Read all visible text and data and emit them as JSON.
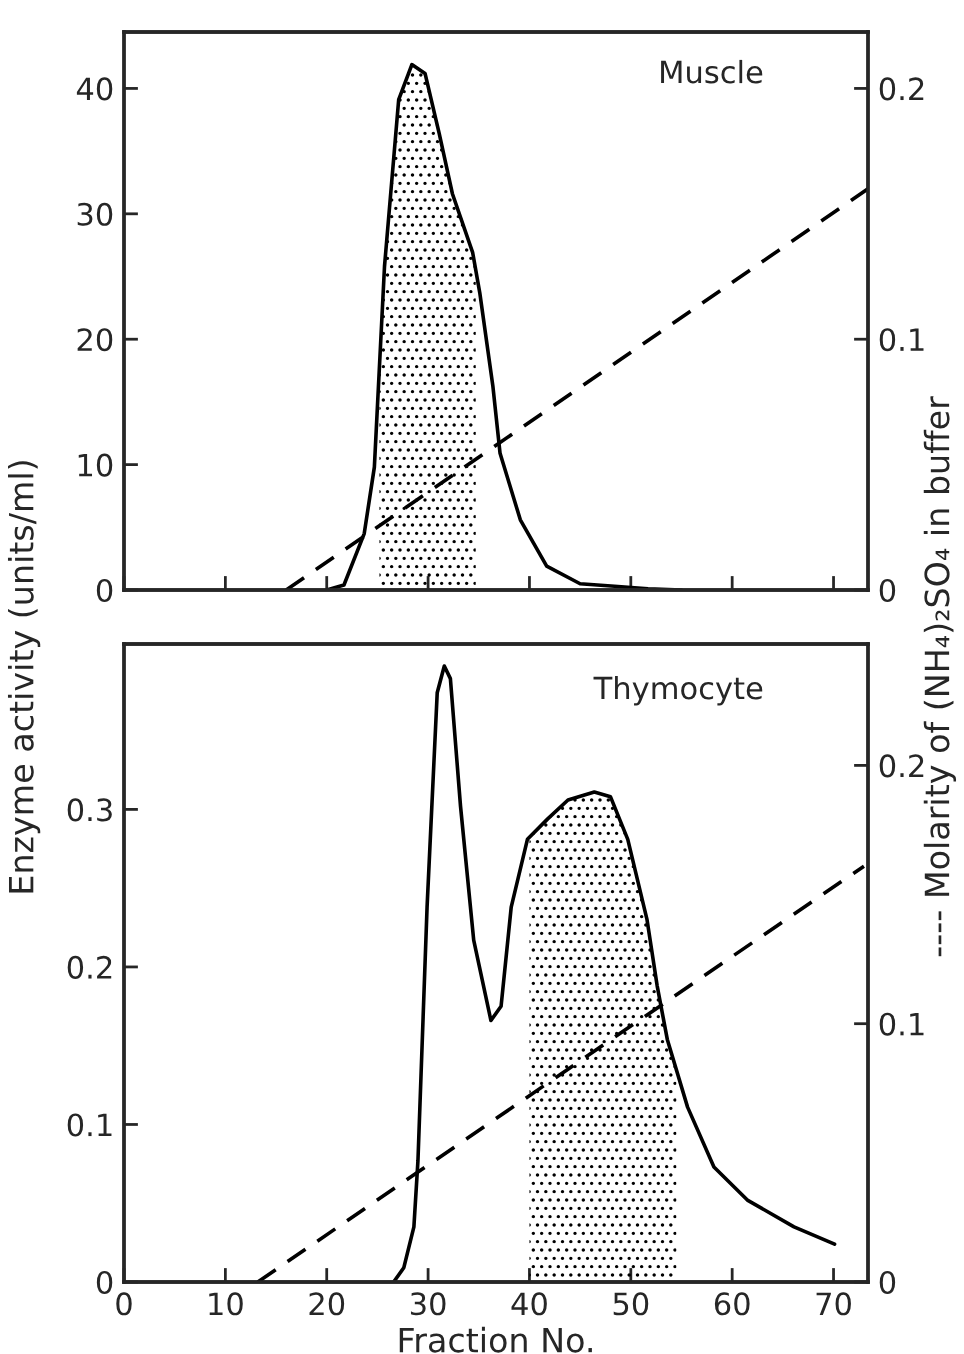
{
  "chart_data": [
    {
      "type": "line",
      "title": "Muscle",
      "ylabel": "Enzyme activity (units/ml)",
      "y2label": "---- Molarity of (NH₄)₂SO₄ in buffer",
      "xlim": [
        0,
        73.4
      ],
      "xticks": [
        0,
        10,
        20,
        30,
        40,
        50,
        60,
        70
      ],
      "ylim": [
        0,
        44.5
      ],
      "yticks": [
        0,
        10,
        20,
        30,
        40
      ],
      "y2lim": [
        0,
        0.2225
      ],
      "y2ticks": [
        0,
        0.1,
        0.2
      ],
      "tick_labels": "y",
      "series": [
        {
          "color": "#000000",
          "line_style": "solid",
          "x": [
            20,
            21.7,
            23.7,
            24.7,
            25.7,
            27.1,
            28.4,
            29.7,
            31.1,
            32.4,
            34.4,
            35.1,
            36.4,
            37.1,
            39.1,
            41.7,
            45,
            48.4,
            51.7,
            55
          ],
          "values": [
            0,
            0.4,
            4.5,
            9.8,
            25.8,
            39.1,
            41.9,
            41.2,
            36.4,
            31.6,
            26.9,
            23.7,
            16.2,
            10.9,
            5.6,
            1.9,
            0.5,
            0.3,
            0.1,
            0
          ]
        },
        {
          "color": "#000000",
          "line_style": "dashed",
          "axis": "y2",
          "x": [
            16,
            73.4
          ],
          "values": [
            0,
            0.16
          ]
        },
        {
          "type": "area",
          "color": "#000000",
          "x": [
            25.2,
            25.7,
            27.1,
            28.4,
            29.7,
            31.1,
            32.4,
            34.4,
            34.7
          ],
          "values": [
            17.8,
            25.8,
            39.1,
            41.9,
            41.2,
            36.4,
            31.6,
            26.9,
            25.5
          ]
        }
      ]
    },
    {
      "type": "line",
      "title": "Thymocyte",
      "xlabel": "Fraction No.",
      "xlim": [
        0,
        73.4
      ],
      "xticks": [
        0,
        10,
        20,
        30,
        40,
        50,
        60,
        70
      ],
      "ylim": [
        0,
        0.405
      ],
      "yticks": [
        0,
        0.1,
        0.2,
        0.3
      ],
      "y2lim": [
        0,
        0.247
      ],
      "y2ticks": [
        0,
        0.1,
        0.2
      ],
      "series": [
        {
          "color": "#000000",
          "line_style": "solid",
          "x": [
            26.6,
            27.6,
            28.6,
            29,
            29.9,
            30.9,
            31.6,
            32.2,
            33.2,
            34.5,
            36.2,
            37.2,
            38.2,
            39.8,
            41.8,
            43.8,
            46.4,
            48,
            49.7,
            51.6,
            52.6,
            53.6,
            55.6,
            58.2,
            61.5,
            66.1,
            70.1
          ],
          "values": [
            0,
            0.009,
            0.035,
            0.077,
            0.238,
            0.374,
            0.391,
            0.383,
            0.302,
            0.217,
            0.166,
            0.175,
            0.238,
            0.281,
            0.294,
            0.306,
            0.311,
            0.308,
            0.281,
            0.23,
            0.188,
            0.154,
            0.111,
            0.073,
            0.052,
            0.035,
            0.024
          ]
        },
        {
          "color": "#000000",
          "line_style": "dashed",
          "axis": "y2",
          "x": [
            13.2,
            73
          ],
          "values": [
            0,
            0.161
          ]
        },
        {
          "type": "area",
          "color": "#000000",
          "x": [
            40,
            41.8,
            43.8,
            46.4,
            48,
            49.7,
            51.6,
            52.6,
            53.6,
            54.5
          ],
          "values": [
            0.282,
            0.294,
            0.306,
            0.311,
            0.308,
            0.281,
            0.23,
            0.188,
            0.154,
            0.135
          ]
        }
      ]
    }
  ]
}
